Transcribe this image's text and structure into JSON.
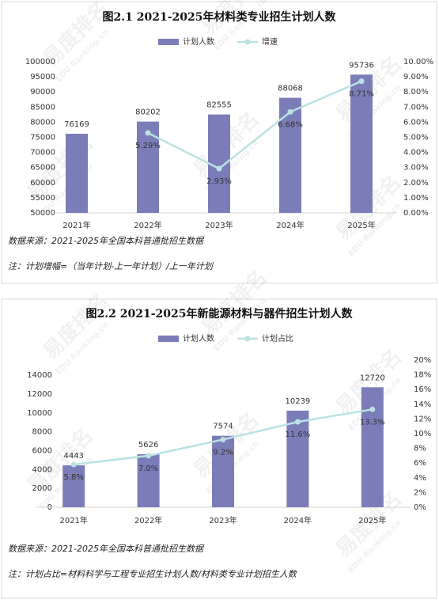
{
  "chart_data": [
    {
      "type": "bar_line",
      "title": "图2.1 2021-2025年材料类专业招生计划人数",
      "categories": [
        "2021年",
        "2022年",
        "2023年",
        "2024年",
        "2025年"
      ],
      "series": [
        {
          "name": "计划人数",
          "type": "bar",
          "color": "#7b7db8",
          "values": [
            76169,
            80202,
            82555,
            88068,
            95736
          ]
        },
        {
          "name": "增速",
          "type": "line",
          "axis": "y2",
          "color": "#b9e3e3",
          "values": [
            null,
            5.29,
            2.93,
            6.68,
            8.71
          ],
          "value_labels": [
            null,
            "5.29%",
            "2.93%",
            "6.68%",
            "8.71%"
          ]
        }
      ],
      "ylim": [
        50000,
        100000
      ],
      "yticks": [
        50000,
        55000,
        60000,
        65000,
        70000,
        75000,
        80000,
        85000,
        90000,
        95000,
        100000
      ],
      "y2lim": [
        0,
        10
      ],
      "y2ticks": [
        {
          "value": 0,
          "label": "0.00%"
        },
        {
          "value": 1,
          "label": "1.00%"
        },
        {
          "value": 2,
          "label": "2.00%"
        },
        {
          "value": 3,
          "label": "3.00%"
        },
        {
          "value": 4,
          "label": "4.00%"
        },
        {
          "value": 5,
          "label": "5.00%"
        },
        {
          "value": 6,
          "label": "6.00%"
        },
        {
          "value": 7,
          "label": "7.00%"
        },
        {
          "value": 8,
          "label": "8.00%"
        },
        {
          "value": 9,
          "label": "9.00%"
        },
        {
          "value": 10,
          "label": "10.00%"
        }
      ],
      "legend": "top",
      "notes": [
        "数据来源：2021-2025年全国本科普通批招生数据",
        "注：计划增幅=（当年计划-上一年计划）/上一年计划"
      ]
    },
    {
      "type": "bar_line",
      "title": "图2.2 2021-2025年新能源材料与器件招生计划人数",
      "categories": [
        "2021年",
        "2022年",
        "2023年",
        "2024年",
        "2025年"
      ],
      "series": [
        {
          "name": "计划人数",
          "type": "bar",
          "color": "#7b7db8",
          "values": [
            4443,
            5626,
            7574,
            10239,
            12720
          ]
        },
        {
          "name": "计划占比",
          "type": "line",
          "axis": "y2",
          "color": "#b9e3e3",
          "values": [
            5.8,
            7.0,
            9.2,
            11.6,
            13.3
          ],
          "value_labels": [
            "5.8%",
            "7.0%",
            "9.2%",
            "11.6%",
            "13.3%"
          ]
        }
      ],
      "ylim": [
        0,
        15600
      ],
      "yticks": [
        0,
        2000,
        4000,
        6000,
        8000,
        10000,
        12000,
        14000
      ],
      "y2lim": [
        0,
        20
      ],
      "y2ticks": [
        {
          "value": 0,
          "label": "0%"
        },
        {
          "value": 2,
          "label": "2%"
        },
        {
          "value": 4,
          "label": "4%"
        },
        {
          "value": 6,
          "label": "6%"
        },
        {
          "value": 8,
          "label": "8%"
        },
        {
          "value": 10,
          "label": "10%"
        },
        {
          "value": 12,
          "label": "12%"
        },
        {
          "value": 14,
          "label": "14%"
        },
        {
          "value": 16,
          "label": "16%"
        },
        {
          "value": 18,
          "label": "18%"
        },
        {
          "value": 20,
          "label": "20%"
        }
      ],
      "legend": "top",
      "notes": [
        "数据来源：2021-2025年全国本科普通批招生数据",
        "注：计划占比=材料科学与工程专业招生计划人数/材料类专业计划招生人数"
      ]
    }
  ],
  "watermark": {
    "brand": "易度排名",
    "site": "EDU Ranking.cn"
  }
}
